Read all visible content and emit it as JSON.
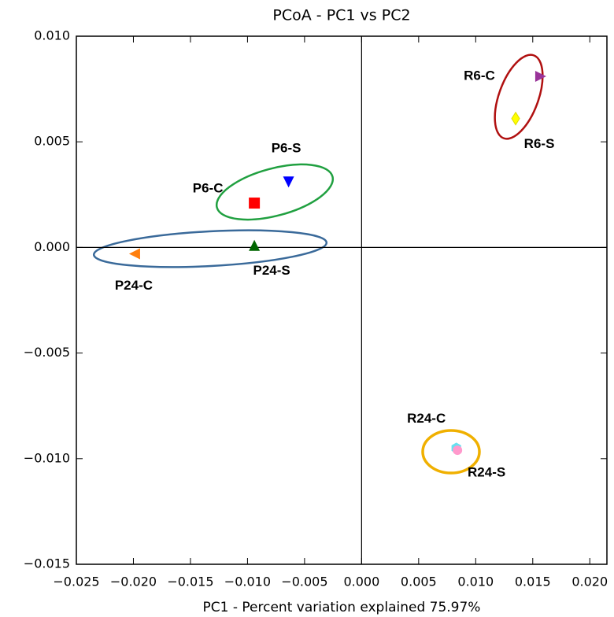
{
  "chart_data": {
    "type": "scatter",
    "title": "PCoA - PC1 vs PC2",
    "xlabel": "PC1 - Percent variation explained 75.97%",
    "xlim": [
      -0.025,
      0.0215
    ],
    "ylim": [
      -0.015,
      0.01
    ],
    "xticks": [
      {
        "value": -0.025,
        "label": "−0.025"
      },
      {
        "value": -0.02,
        "label": "−0.020"
      },
      {
        "value": -0.015,
        "label": "−0.015"
      },
      {
        "value": -0.01,
        "label": "−0.010"
      },
      {
        "value": -0.005,
        "label": "−0.005"
      },
      {
        "value": 0.0,
        "label": "0.000"
      },
      {
        "value": 0.005,
        "label": "0.005"
      },
      {
        "value": 0.01,
        "label": "0.010"
      },
      {
        "value": 0.015,
        "label": "0.015"
      },
      {
        "value": 0.02,
        "label": "0.020"
      }
    ],
    "yticks": [
      {
        "value": 0.01,
        "label": "0.010"
      },
      {
        "value": 0.005,
        "label": "0.005"
      },
      {
        "value": 0.0,
        "label": "0.000"
      },
      {
        "value": -0.005,
        "label": "−0.005"
      },
      {
        "value": -0.01,
        "label": "−0.010"
      },
      {
        "value": -0.015,
        "label": "−0.015"
      }
    ],
    "series": [
      {
        "name": "R6-C",
        "color": "#993399",
        "marker": "triangle-right",
        "x": [
          0.0157
        ],
        "values": [
          0.0081
        ]
      },
      {
        "name": "R6-S",
        "color": "#ffff00",
        "marker": "diamond",
        "x": [
          0.0135
        ],
        "values": [
          0.0061
        ]
      },
      {
        "name": "R24-C",
        "color": "#66e0f0",
        "marker": "hexagon",
        "x": [
          0.0083
        ],
        "values": [
          -0.0095
        ]
      },
      {
        "name": "R24-S",
        "color": "#ff99cc",
        "marker": "circle",
        "x": [
          0.0084
        ],
        "values": [
          -0.0096
        ]
      },
      {
        "name": "P6-S",
        "color": "#0000ff",
        "marker": "triangle-down",
        "x": [
          -0.0064
        ],
        "values": [
          0.0031
        ]
      },
      {
        "name": "P6-C",
        "color": "#ff0000",
        "marker": "square",
        "x": [
          -0.0094
        ],
        "values": [
          0.0021
        ]
      },
      {
        "name": "P24-S",
        "color": "#006600",
        "marker": "triangle-up",
        "x": [
          -0.0094
        ],
        "values": [
          0.0001
        ]
      },
      {
        "name": "P24-C",
        "color": "#ff7f0e",
        "marker": "triangle-left",
        "x": [
          -0.0199
        ],
        "values": [
          -0.0003
        ]
      }
    ]
  }
}
